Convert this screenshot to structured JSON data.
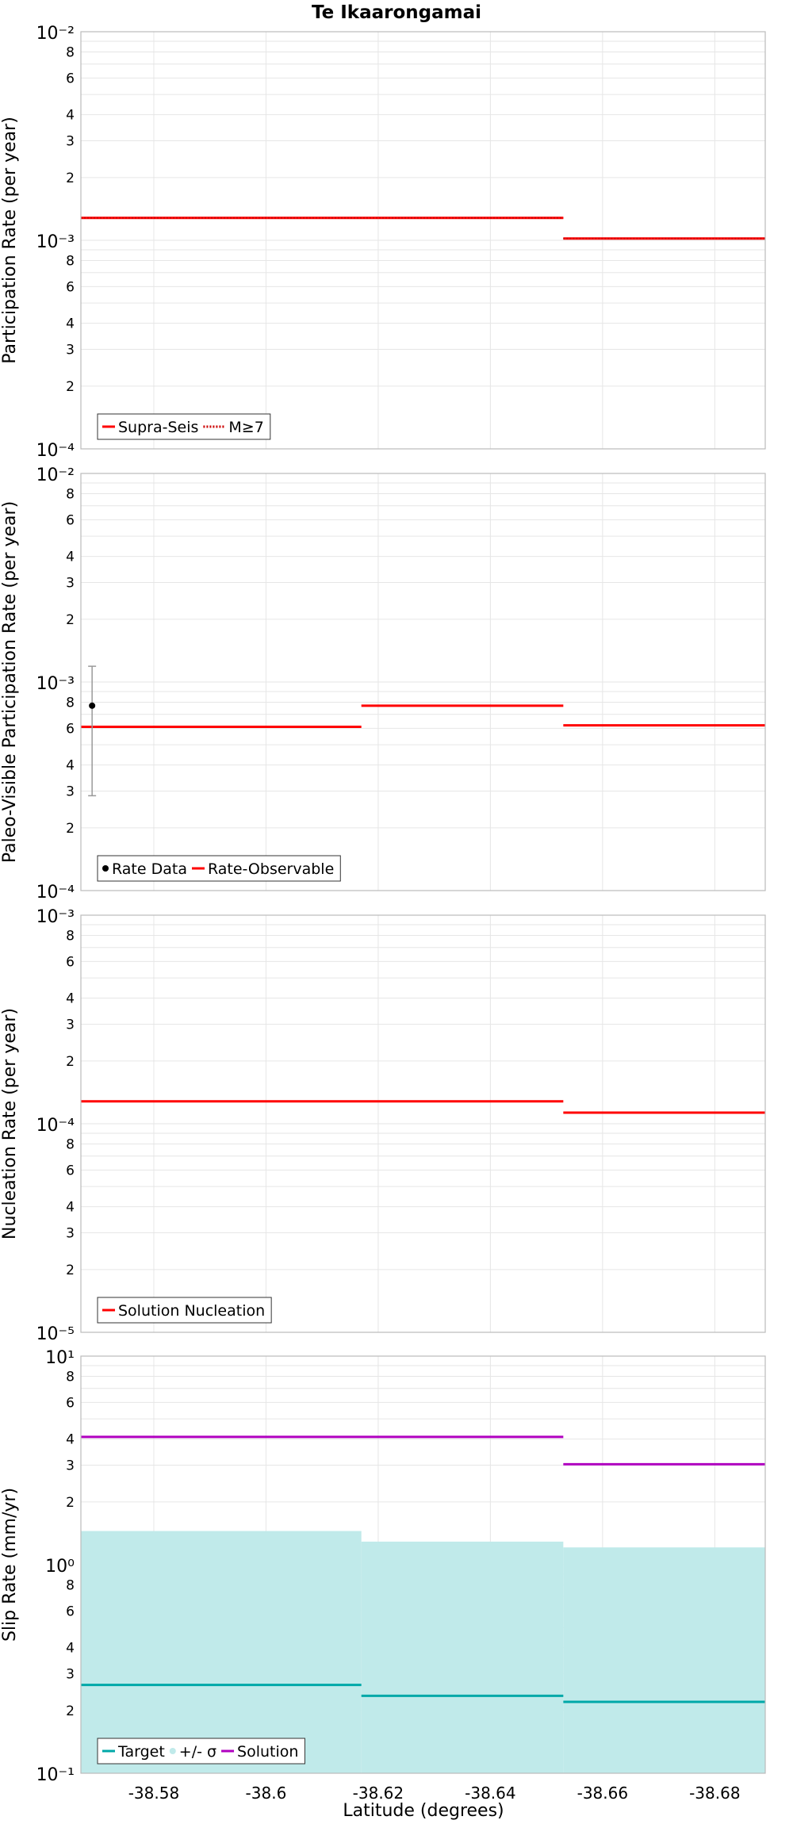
{
  "title": "Te Ikaarongamai",
  "xlabel": "Latitude (degrees)",
  "xlim": [
    -38.567,
    -38.689
  ],
  "xticks": [
    "-38.58",
    "-38.6",
    "-38.62",
    "-38.64",
    "-38.66",
    "-38.68"
  ],
  "xtick_values": [
    -38.58,
    -38.6,
    -38.62,
    -38.64,
    -38.66,
    -38.68
  ],
  "colors": {
    "red": "#ff0000",
    "teal": "#00a8a8",
    "band": "#c0eaea",
    "purple": "#b000c0",
    "grid": "#e6e6e6",
    "error_bar": "#999999",
    "point": "#000000"
  },
  "chart_data": [
    {
      "type": "line",
      "ylabel": "Participation Rate (per year)",
      "yscale": "log",
      "ylim_exp": [
        -4,
        -2
      ],
      "series": [
        {
          "name": "Supra-Seis",
          "style": "solid",
          "color": "#ff0000",
          "segments": [
            {
              "x0": -38.567,
              "x1": -38.653,
              "y": 0.00128
            },
            {
              "x0": -38.653,
              "x1": -38.689,
              "y": 0.00102
            }
          ]
        },
        {
          "name": "M≥7",
          "style": "dotted",
          "color": "#cc0000",
          "segments": [
            {
              "x0": -38.567,
              "x1": -38.653,
              "y": 0.00128
            },
            {
              "x0": -38.653,
              "x1": -38.689,
              "y": 0.00102
            }
          ]
        }
      ],
      "legend": [
        {
          "label": "Supra-Seis",
          "kind": "line",
          "color": "#ff0000"
        },
        {
          "label": "M≥7",
          "kind": "dotted",
          "color": "#cc0000"
        }
      ]
    },
    {
      "type": "line",
      "ylabel": "Paleo-Visible Participation Rate (per year)",
      "yscale": "log",
      "ylim_exp": [
        -4,
        -2
      ],
      "series": [
        {
          "name": "Rate-Observable",
          "style": "solid",
          "color": "#ff0000",
          "segments": [
            {
              "x0": -38.567,
              "x1": -38.617,
              "y": 0.00061
            },
            {
              "x0": -38.617,
              "x1": -38.653,
              "y": 0.00077
            },
            {
              "x0": -38.653,
              "x1": -38.689,
              "y": 0.00062
            }
          ]
        }
      ],
      "points": [
        {
          "name": "Rate Data",
          "x": -38.569,
          "y": 0.00077,
          "low": 0.000285,
          "high": 0.00119
        }
      ],
      "legend": [
        {
          "label": "Rate Data",
          "kind": "dot",
          "color": "#000000"
        },
        {
          "label": "Rate-Observable",
          "kind": "line",
          "color": "#ff0000"
        }
      ]
    },
    {
      "type": "line",
      "ylabel": "Nucleation Rate (per year)",
      "yscale": "log",
      "ylim_exp": [
        -5,
        -3
      ],
      "series": [
        {
          "name": "Solution Nucleation",
          "style": "solid",
          "color": "#ff0000",
          "segments": [
            {
              "x0": -38.567,
              "x1": -38.653,
              "y": 0.000128
            },
            {
              "x0": -38.653,
              "x1": -38.689,
              "y": 0.000113
            }
          ]
        }
      ],
      "legend": [
        {
          "label": "Solution Nucleation",
          "kind": "line",
          "color": "#ff0000"
        }
      ]
    },
    {
      "type": "area",
      "ylabel": "Slip Rate (mm/yr)",
      "yscale": "log",
      "ylim_exp": [
        -1,
        1
      ],
      "band": {
        "name": "+/- σ",
        "color": "#c0eaea",
        "segments": [
          {
            "x0": -38.567,
            "x1": -38.617,
            "low": 0.1,
            "high": 1.45
          },
          {
            "x0": -38.617,
            "x1": -38.653,
            "low": 0.1,
            "high": 1.29
          },
          {
            "x0": -38.653,
            "x1": -38.689,
            "low": 0.1,
            "high": 1.21
          }
        ]
      },
      "series": [
        {
          "name": "Target",
          "style": "solid",
          "color": "#00a8a8",
          "segments": [
            {
              "x0": -38.567,
              "x1": -38.617,
              "y": 0.265
            },
            {
              "x0": -38.617,
              "x1": -38.653,
              "y": 0.235
            },
            {
              "x0": -38.653,
              "x1": -38.689,
              "y": 0.22
            }
          ]
        },
        {
          "name": "Solution",
          "style": "solid",
          "color": "#b000c0",
          "segments": [
            {
              "x0": -38.567,
              "x1": -38.653,
              "y": 4.1
            },
            {
              "x0": -38.653,
              "x1": -38.689,
              "y": 3.03
            }
          ]
        }
      ],
      "legend": [
        {
          "label": "Target",
          "kind": "line",
          "color": "#00a8a8"
        },
        {
          "label": "+/- σ",
          "kind": "dot",
          "color": "#c0eaea"
        },
        {
          "label": "Solution",
          "kind": "line",
          "color": "#b000c0"
        }
      ]
    }
  ]
}
